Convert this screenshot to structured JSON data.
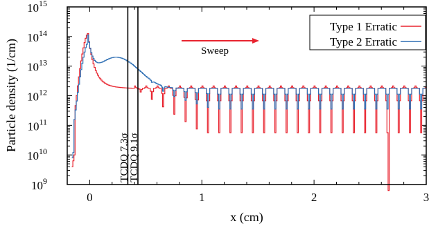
{
  "chart_data": {
    "type": "line",
    "title": "",
    "xlabel": "x (cm)",
    "ylabel": "Particle density (1/cm)",
    "xlim": [
      -0.2,
      3.0
    ],
    "ylim_log10": [
      9,
      15
    ],
    "yscale": "log",
    "x_ticks": [
      {
        "value": 0,
        "label": "0"
      },
      {
        "value": 1,
        "label": "1"
      },
      {
        "value": 2,
        "label": "2"
      },
      {
        "value": 3,
        "label": "3"
      }
    ],
    "y_ticks": [
      {
        "exp": 9,
        "base": "10",
        "sup": "9"
      },
      {
        "exp": 10,
        "base": "10",
        "sup": "10"
      },
      {
        "exp": 11,
        "base": "10",
        "sup": "11"
      },
      {
        "exp": 12,
        "base": "10",
        "sup": "12"
      },
      {
        "exp": 13,
        "base": "10",
        "sup": "13"
      },
      {
        "exp": 14,
        "base": "10",
        "sup": "14"
      },
      {
        "exp": 15,
        "base": "10",
        "sup": "15"
      }
    ],
    "legend_position": "top-right",
    "series": [
      {
        "name": "Type 1 Erratic",
        "color": "#e8232e",
        "peak": {
          "x": -0.02,
          "log10y": 14.1
        },
        "baseline_log10y": 12.3,
        "oscillation_period_cm": 0.1,
        "dip_max_depth_decades": 1.5,
        "deep_dip_at_x": 2.66
      },
      {
        "name": "Type 2 Erratic",
        "color": "#2e6fb4",
        "peak": {
          "x": -0.02,
          "log10y": 13.8
        },
        "shoulder": {
          "x": 0.33,
          "log10y": 13.0
        },
        "baseline_log10y": 12.25,
        "oscillation_period_cm": 0.1,
        "dip_max_depth_decades": 0.7
      }
    ],
    "vertical_markers": [
      {
        "x": 0.34,
        "label": "TCDQ 7.3σ"
      },
      {
        "x": 0.43,
        "label": "TCDQ 9.1σ"
      }
    ],
    "annotation": {
      "text": "Sweep",
      "color": "#e8232e",
      "direction": "right"
    }
  }
}
